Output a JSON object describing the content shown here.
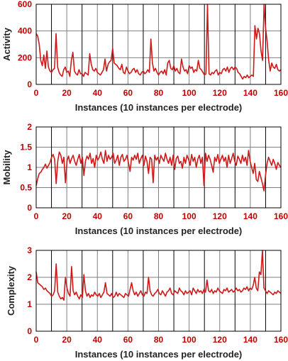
{
  "colors": {
    "series": "#d01818",
    "tick_labels": "#c00000",
    "axis_titles": "#222222",
    "grid": "#7f7f7f",
    "frame": "#000000",
    "background": "#ffffff"
  },
  "chart_data": [
    {
      "type": "line",
      "ylabel": "Activity",
      "xlabel": "Instances (10 instances per electrode)",
      "xlim": [
        0,
        160
      ],
      "ylim": [
        0,
        600
      ],
      "x_ticks": [
        "0",
        "20",
        "40",
        "60",
        "80",
        "100",
        "120",
        "140",
        "160"
      ],
      "y_ticks": [
        "0",
        "200",
        "400",
        "600"
      ],
      "x_tick_values": [
        0,
        20,
        40,
        60,
        80,
        100,
        120,
        140,
        160
      ],
      "y_tick_values": [
        0,
        200,
        400,
        600
      ],
      "grid": true,
      "series": [
        {
          "values": [
            380,
            360,
            300,
            180,
            140,
            220,
            120,
            250,
            130,
            100,
            90,
            110,
            120,
            380,
            130,
            90,
            70,
            60,
            110,
            130,
            90,
            100,
            60,
            180,
            240,
            100,
            80,
            70,
            110,
            80,
            80,
            60,
            90,
            80,
            70,
            230,
            150,
            110,
            100,
            120,
            90,
            80,
            70,
            90,
            110,
            190,
            100,
            150,
            170,
            180,
            270,
            160,
            150,
            140,
            120,
            110,
            150,
            90,
            80,
            130,
            100,
            80,
            90,
            110,
            120,
            90,
            110,
            80,
            70,
            90,
            100,
            80,
            90,
            110,
            90,
            340,
            160,
            100,
            120,
            90,
            70,
            90,
            100,
            80,
            110,
            70,
            160,
            180,
            120,
            110,
            140,
            100,
            120,
            90,
            80,
            190,
            130,
            100,
            110,
            80,
            140,
            120,
            130,
            90,
            110,
            100,
            180,
            120,
            110,
            90,
            70,
            80,
            600,
            80,
            70,
            90,
            80,
            100,
            110,
            70,
            90,
            80,
            110,
            120,
            100,
            130,
            90,
            120,
            130,
            110,
            130,
            120,
            90,
            80,
            60,
            40,
            60,
            50,
            70,
            50,
            60,
            70,
            60,
            440,
            340,
            420,
            380,
            250,
            180,
            600,
            420,
            320,
            180,
            100,
            160,
            130,
            120,
            150,
            110,
            100,
            110
          ]
        }
      ]
    },
    {
      "type": "line",
      "ylabel": "Mobility",
      "xlabel": "Instances (10 instances per electrode)",
      "xlim": [
        0,
        160
      ],
      "ylim": [
        0,
        2
      ],
      "x_ticks": [
        "0",
        "20",
        "40",
        "60",
        "80",
        "100",
        "120",
        "140",
        "160"
      ],
      "y_ticks": [
        "0",
        "0.5",
        "1",
        "1.5",
        "2"
      ],
      "x_tick_values": [
        0,
        20,
        40,
        60,
        80,
        100,
        120,
        140,
        160
      ],
      "y_tick_values": [
        0,
        0.5,
        1,
        1.5,
        2
      ],
      "grid": true,
      "series": [
        {
          "values": [
            0.55,
            0.72,
            0.85,
            0.88,
            0.95,
            1.0,
            1.08,
            0.98,
            1.05,
            1.12,
            1.25,
            1.32,
            1.2,
            0.6,
            1.15,
            1.38,
            1.3,
            1.1,
            1.25,
            0.62,
            1.15,
            1.28,
            1.1,
            1.22,
            1.3,
            1.15,
            1.05,
            1.2,
            1.32,
            1.1,
            1.25,
            0.8,
            1.15,
            1.28,
            1.2,
            1.35,
            1.1,
            1.22,
            1.0,
            1.3,
            1.18,
            1.25,
            1.38,
            1.2,
            1.1,
            1.42,
            1.15,
            1.3,
            1.2,
            1.25,
            1.35,
            1.1,
            1.18,
            1.3,
            1.05,
            1.25,
            1.32,
            1.15,
            1.2,
            1.3,
            1.1,
            0.9,
            1.25,
            1.18,
            1.3,
            1.2,
            1.35,
            1.1,
            1.22,
            1.3,
            1.05,
            1.28,
            1.15,
            0.85,
            1.25,
            1.2,
            0.62,
            1.3,
            1.18,
            1.25,
            1.1,
            1.3,
            1.22,
            1.15,
            1.35,
            1.2,
            1.1,
            1.25,
            1.05,
            1.3,
            0.95,
            1.22,
            1.28,
            1.1,
            1.15,
            0.98,
            1.25,
            1.1,
            1.3,
            1.2,
            1.05,
            1.32,
            1.15,
            1.25,
            1.0,
            1.2,
            1.3,
            1.1,
            1.25,
            0.55,
            1.35,
            1.15,
            1.3,
            1.2,
            1.05,
            0.88,
            1.25,
            1.15,
            1.32,
            1.1,
            1.2,
            1.3,
            1.15,
            1.25,
            1.0,
            1.3,
            1.1,
            1.22,
            1.35,
            1.15,
            1.05,
            1.28,
            1.2,
            1.1,
            1.3,
            1.15,
            1.25,
            1.05,
            1.42,
            1.15,
            1.0,
            0.85,
            1.1,
            0.7,
            0.65,
            0.9,
            0.75,
            0.6,
            0.42,
            0.8,
            1.1,
            1.25,
            1.15,
            1.05,
            1.2,
            1.1,
            0.95,
            1.12,
            1.05,
            1.0
          ]
        }
      ]
    },
    {
      "type": "line",
      "ylabel": "Complexity",
      "xlabel": "Instances (10 instances per electrode)",
      "xlim": [
        0,
        160
      ],
      "ylim": [
        0,
        3
      ],
      "x_ticks": [
        "0",
        "20",
        "40",
        "60",
        "80",
        "100",
        "120",
        "140",
        "160"
      ],
      "y_ticks": [
        "0",
        "1",
        "2",
        "3"
      ],
      "x_tick_values": [
        0,
        20,
        40,
        60,
        80,
        100,
        120,
        140,
        160
      ],
      "y_tick_values": [
        0,
        1,
        2,
        3
      ],
      "grid": true,
      "series": [
        {
          "values": [
            2.2,
            1.8,
            1.75,
            1.7,
            1.65,
            1.55,
            1.6,
            1.5,
            1.45,
            1.4,
            1.3,
            1.35,
            1.5,
            2.5,
            1.45,
            1.3,
            1.2,
            1.25,
            1.15,
            2.0,
            1.6,
            1.4,
            1.3,
            2.4,
            1.5,
            1.35,
            1.45,
            1.3,
            1.2,
            1.35,
            1.25,
            2.1,
            1.5,
            1.3,
            1.4,
            1.25,
            1.35,
            1.3,
            1.45,
            1.35,
            1.3,
            1.4,
            1.25,
            1.35,
            1.45,
            1.8,
            1.4,
            1.35,
            1.3,
            1.4,
            1.25,
            1.3,
            1.45,
            1.3,
            1.4,
            1.35,
            1.3,
            1.25,
            1.4,
            1.35,
            1.3,
            1.55,
            1.8,
            1.5,
            1.35,
            1.45,
            1.3,
            1.4,
            1.5,
            1.35,
            1.3,
            1.45,
            1.4,
            2.0,
            1.5,
            1.35,
            1.3,
            1.4,
            1.45,
            1.55,
            1.4,
            1.35,
            1.5,
            1.4,
            1.3,
            1.45,
            1.5,
            1.6,
            1.4,
            1.35,
            1.5,
            1.45,
            1.4,
            1.6,
            1.5,
            1.45,
            1.35,
            1.5,
            1.4,
            1.45,
            1.5,
            1.35,
            1.6,
            1.5,
            1.4,
            1.55,
            1.45,
            1.5,
            1.4,
            1.55,
            1.45,
            1.9,
            1.5,
            1.45,
            1.55,
            1.4,
            1.5,
            1.45,
            1.6,
            1.5,
            1.45,
            1.4,
            1.55,
            1.5,
            1.6,
            1.45,
            1.5,
            1.55,
            1.45,
            1.5,
            1.6,
            1.5,
            1.55,
            1.45,
            1.5,
            1.6,
            1.55,
            1.65,
            1.5,
            1.6,
            1.55,
            1.7,
            2.0,
            1.6,
            1.5,
            2.2,
            2.1,
            3.0,
            1.6,
            1.5,
            1.4,
            1.5,
            1.45,
            1.4,
            1.35,
            1.45,
            1.4,
            1.5,
            1.45,
            1.4
          ]
        }
      ]
    }
  ]
}
